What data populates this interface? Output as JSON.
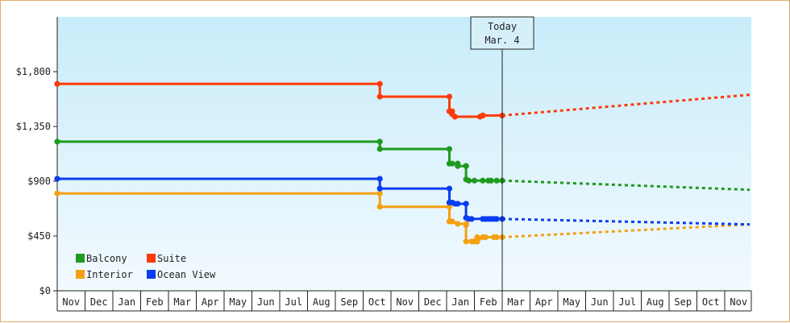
{
  "chart_data": {
    "type": "line",
    "title": "",
    "xlabel": "",
    "ylabel": "",
    "y_ticks": [
      "$0",
      "$450",
      "$900",
      "$1,350",
      "$1,800"
    ],
    "y_tick_values": [
      0,
      450,
      900,
      1350,
      1800
    ],
    "ylim": [
      0,
      2250
    ],
    "x_months": [
      "Nov",
      "Dec",
      "Jan",
      "Feb",
      "Mar",
      "Apr",
      "May",
      "Jun",
      "Jul",
      "Aug",
      "Sep",
      "Oct",
      "Nov",
      "Dec",
      "Jan",
      "Feb",
      "Mar",
      "Apr",
      "May",
      "Jun",
      "Jul",
      "Aug",
      "Sep",
      "Oct",
      "Nov"
    ],
    "x_unit": "months since start of first Nov",
    "xlim": [
      0,
      24.9
    ],
    "today": {
      "line1": "Today",
      "line2": "Mar. 4",
      "x": 16.0
    },
    "grid": false,
    "legend_position": "bottom-left",
    "series": [
      {
        "name": "Balcony",
        "color": "#1e9b1e",
        "points": [
          [
            0,
            1225
          ],
          [
            11.6,
            1225
          ],
          [
            11.6,
            1165
          ],
          [
            14.1,
            1165
          ],
          [
            14.1,
            1045
          ],
          [
            14.2,
            1045
          ],
          [
            14.4,
            1045
          ],
          [
            14.4,
            1025
          ],
          [
            14.7,
            1025
          ],
          [
            14.7,
            1025
          ],
          [
            14.7,
            915
          ],
          [
            14.8,
            905
          ],
          [
            15.0,
            905
          ],
          [
            15.3,
            905
          ],
          [
            15.5,
            905
          ],
          [
            15.6,
            905
          ],
          [
            15.8,
            905
          ],
          [
            16.0,
            905
          ]
        ],
        "forecast": [
          [
            16.0,
            905
          ],
          [
            24.9,
            830
          ]
        ]
      },
      {
        "name": "Suite",
        "color": "#ff3a0a",
        "points": [
          [
            0,
            1700
          ],
          [
            11.6,
            1700
          ],
          [
            11.6,
            1595
          ],
          [
            14.1,
            1595
          ],
          [
            14.1,
            1475
          ],
          [
            14.2,
            1475
          ],
          [
            14.2,
            1450
          ],
          [
            14.3,
            1430
          ],
          [
            15.2,
            1430
          ],
          [
            15.3,
            1440
          ],
          [
            15.3,
            1440
          ],
          [
            16.0,
            1440
          ]
        ],
        "forecast": [
          [
            16.0,
            1440
          ],
          [
            24.9,
            1610
          ]
        ]
      },
      {
        "name": "Interior",
        "color": "#f5a012",
        "points": [
          [
            0,
            800
          ],
          [
            11.6,
            800
          ],
          [
            11.6,
            690
          ],
          [
            14.1,
            690
          ],
          [
            14.1,
            570
          ],
          [
            14.2,
            570
          ],
          [
            14.2,
            570
          ],
          [
            14.4,
            550
          ],
          [
            14.7,
            550
          ],
          [
            14.7,
            540
          ],
          [
            14.7,
            405
          ],
          [
            14.9,
            405
          ],
          [
            15.0,
            405
          ],
          [
            15.1,
            440
          ],
          [
            15.1,
            405
          ],
          [
            15.3,
            440
          ],
          [
            15.4,
            440
          ],
          [
            15.7,
            440
          ],
          [
            15.8,
            440
          ],
          [
            16.0,
            440
          ]
        ],
        "forecast": [
          [
            16.0,
            440
          ],
          [
            24.9,
            545
          ]
        ]
      },
      {
        "name": "Ocean View",
        "color": "#0a3cf0",
        "points": [
          [
            0,
            920
          ],
          [
            11.6,
            920
          ],
          [
            11.6,
            840
          ],
          [
            14.1,
            840
          ],
          [
            14.1,
            725
          ],
          [
            14.2,
            725
          ],
          [
            14.3,
            715
          ],
          [
            14.4,
            715
          ],
          [
            14.7,
            715
          ],
          [
            14.7,
            600
          ],
          [
            14.8,
            590
          ],
          [
            14.9,
            590
          ],
          [
            15.3,
            590
          ],
          [
            15.4,
            590
          ],
          [
            15.5,
            590
          ],
          [
            15.6,
            590
          ],
          [
            15.7,
            590
          ],
          [
            15.8,
            590
          ],
          [
            16.0,
            590
          ]
        ],
        "forecast": [
          [
            16.0,
            590
          ],
          [
            24.9,
            545
          ]
        ]
      }
    ]
  },
  "legend": [
    {
      "label": "Balcony",
      "color": "#1e9b1e"
    },
    {
      "label": "Suite",
      "color": "#ff3a0a"
    },
    {
      "label": "Interior",
      "color": "#f5a012"
    },
    {
      "label": "Ocean View",
      "color": "#0a3cf0"
    }
  ],
  "colors": {
    "plot_top": "#c8ecfa",
    "plot_bottom": "#f2fafe",
    "frame_border": "#e0a870",
    "axis": "#222222",
    "today_box": "#d6f0fa"
  }
}
